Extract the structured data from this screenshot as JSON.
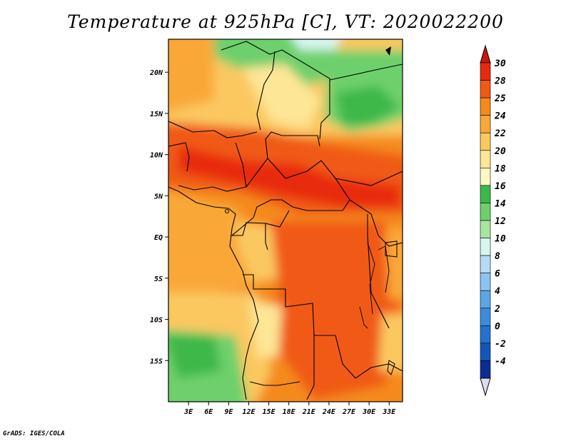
{
  "title": "Temperature at 925hPa [C], VT: 2020022200",
  "credit": "GrADS: IGES/COLA",
  "map": {
    "lon_range": [
      0,
      35
    ],
    "lat_range": [
      -20,
      24
    ],
    "lon_ticks": [
      "3E",
      "6E",
      "9E",
      "12E",
      "15E",
      "18E",
      "21E",
      "24E",
      "27E",
      "30E",
      "33E"
    ],
    "lat_ticks": [
      "20N",
      "15N",
      "10N",
      "5N",
      "EQ",
      "5S",
      "10S",
      "15S"
    ]
  },
  "colorbar": {
    "labels": [
      "30",
      "28",
      "25",
      "24",
      "22",
      "20",
      "18",
      "16",
      "14",
      "12",
      "10",
      "8",
      "6",
      "4",
      "2",
      "0",
      "-2",
      "-4"
    ],
    "colors": [
      "#e8290e",
      "#f05a14",
      "#f58a1c",
      "#f9a838",
      "#fbc860",
      "#fde696",
      "#fdf9c0",
      "#3cb84a",
      "#6ed06c",
      "#a8e6a0",
      "#d8f6f0",
      "#b4dcf6",
      "#8cc4f0",
      "#5ca6e6",
      "#3c8cda",
      "#2472cc",
      "#1456b8",
      "#0a2e94"
    ],
    "top_arrow_color": "#c41a10",
    "bottom_arrow_color": "#dcdcf0"
  }
}
